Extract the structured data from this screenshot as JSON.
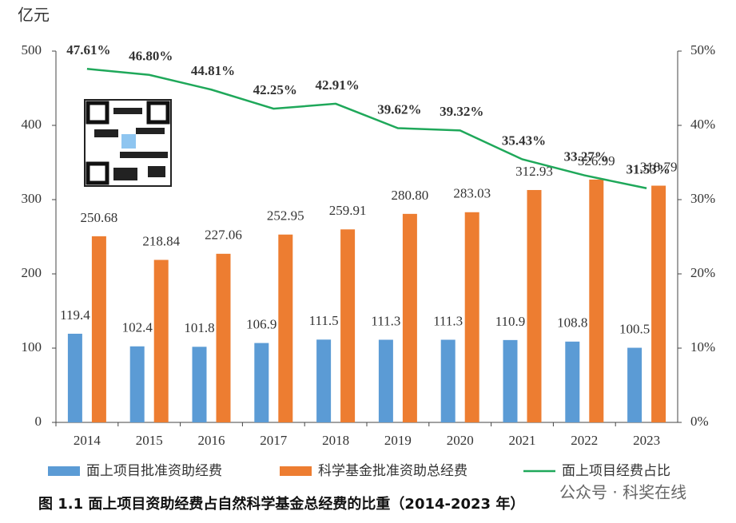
{
  "chart_data": {
    "type": "bar",
    "y_axis_label": "亿元",
    "categories": [
      "2014",
      "2015",
      "2016",
      "2017",
      "2018",
      "2019",
      "2020",
      "2021",
      "2022",
      "2023"
    ],
    "series": [
      {
        "name": "面上项目批准资助经费",
        "color": "#5b9bd5",
        "values": [
          119.4,
          102.4,
          101.8,
          106.9,
          111.5,
          111.3,
          111.3,
          110.9,
          108.8,
          100.5
        ]
      },
      {
        "name": "科学基金批准资助总经费",
        "color": "#ed7d31",
        "values": [
          250.68,
          218.84,
          227.06,
          252.95,
          259.91,
          280.8,
          283.03,
          312.93,
          326.99,
          318.79
        ],
        "value_labels": [
          "250.68",
          "218.84",
          "227.06",
          "252.95",
          "259.91",
          "280.80",
          "283.03",
          "312.93",
          "326.99",
          "318.79"
        ]
      },
      {
        "name": "面上项目经费占比",
        "color": "#1fa85a",
        "type": "line",
        "axis": "y2",
        "values": [
          47.61,
          46.8,
          44.81,
          42.25,
          42.91,
          39.62,
          39.32,
          35.43,
          33.27,
          31.53
        ],
        "value_labels": [
          "47.61%",
          "46.80%",
          "44.81%",
          "42.25%",
          "42.91%",
          "39.62%",
          "39.32%",
          "35.43%",
          "33.27%",
          "31.53%"
        ]
      }
    ],
    "ylim": [
      0,
      500
    ],
    "yticks": [
      0,
      100,
      200,
      300,
      400,
      500
    ],
    "y2lim": [
      0,
      50
    ],
    "y2ticks": [
      {
        "value": 0,
        "label": "0%"
      },
      {
        "value": 10,
        "label": "10%"
      },
      {
        "value": 20,
        "label": "20%"
      },
      {
        "value": 30,
        "label": "30%"
      },
      {
        "value": 40,
        "label": "40%"
      },
      {
        "value": 50,
        "label": "50%"
      }
    ],
    "caption": "图 1.1  面上项目资助经费占自然科学基金总经费的比重（2014-2023 年）",
    "watermark": "公众号 · 科奖在线"
  }
}
